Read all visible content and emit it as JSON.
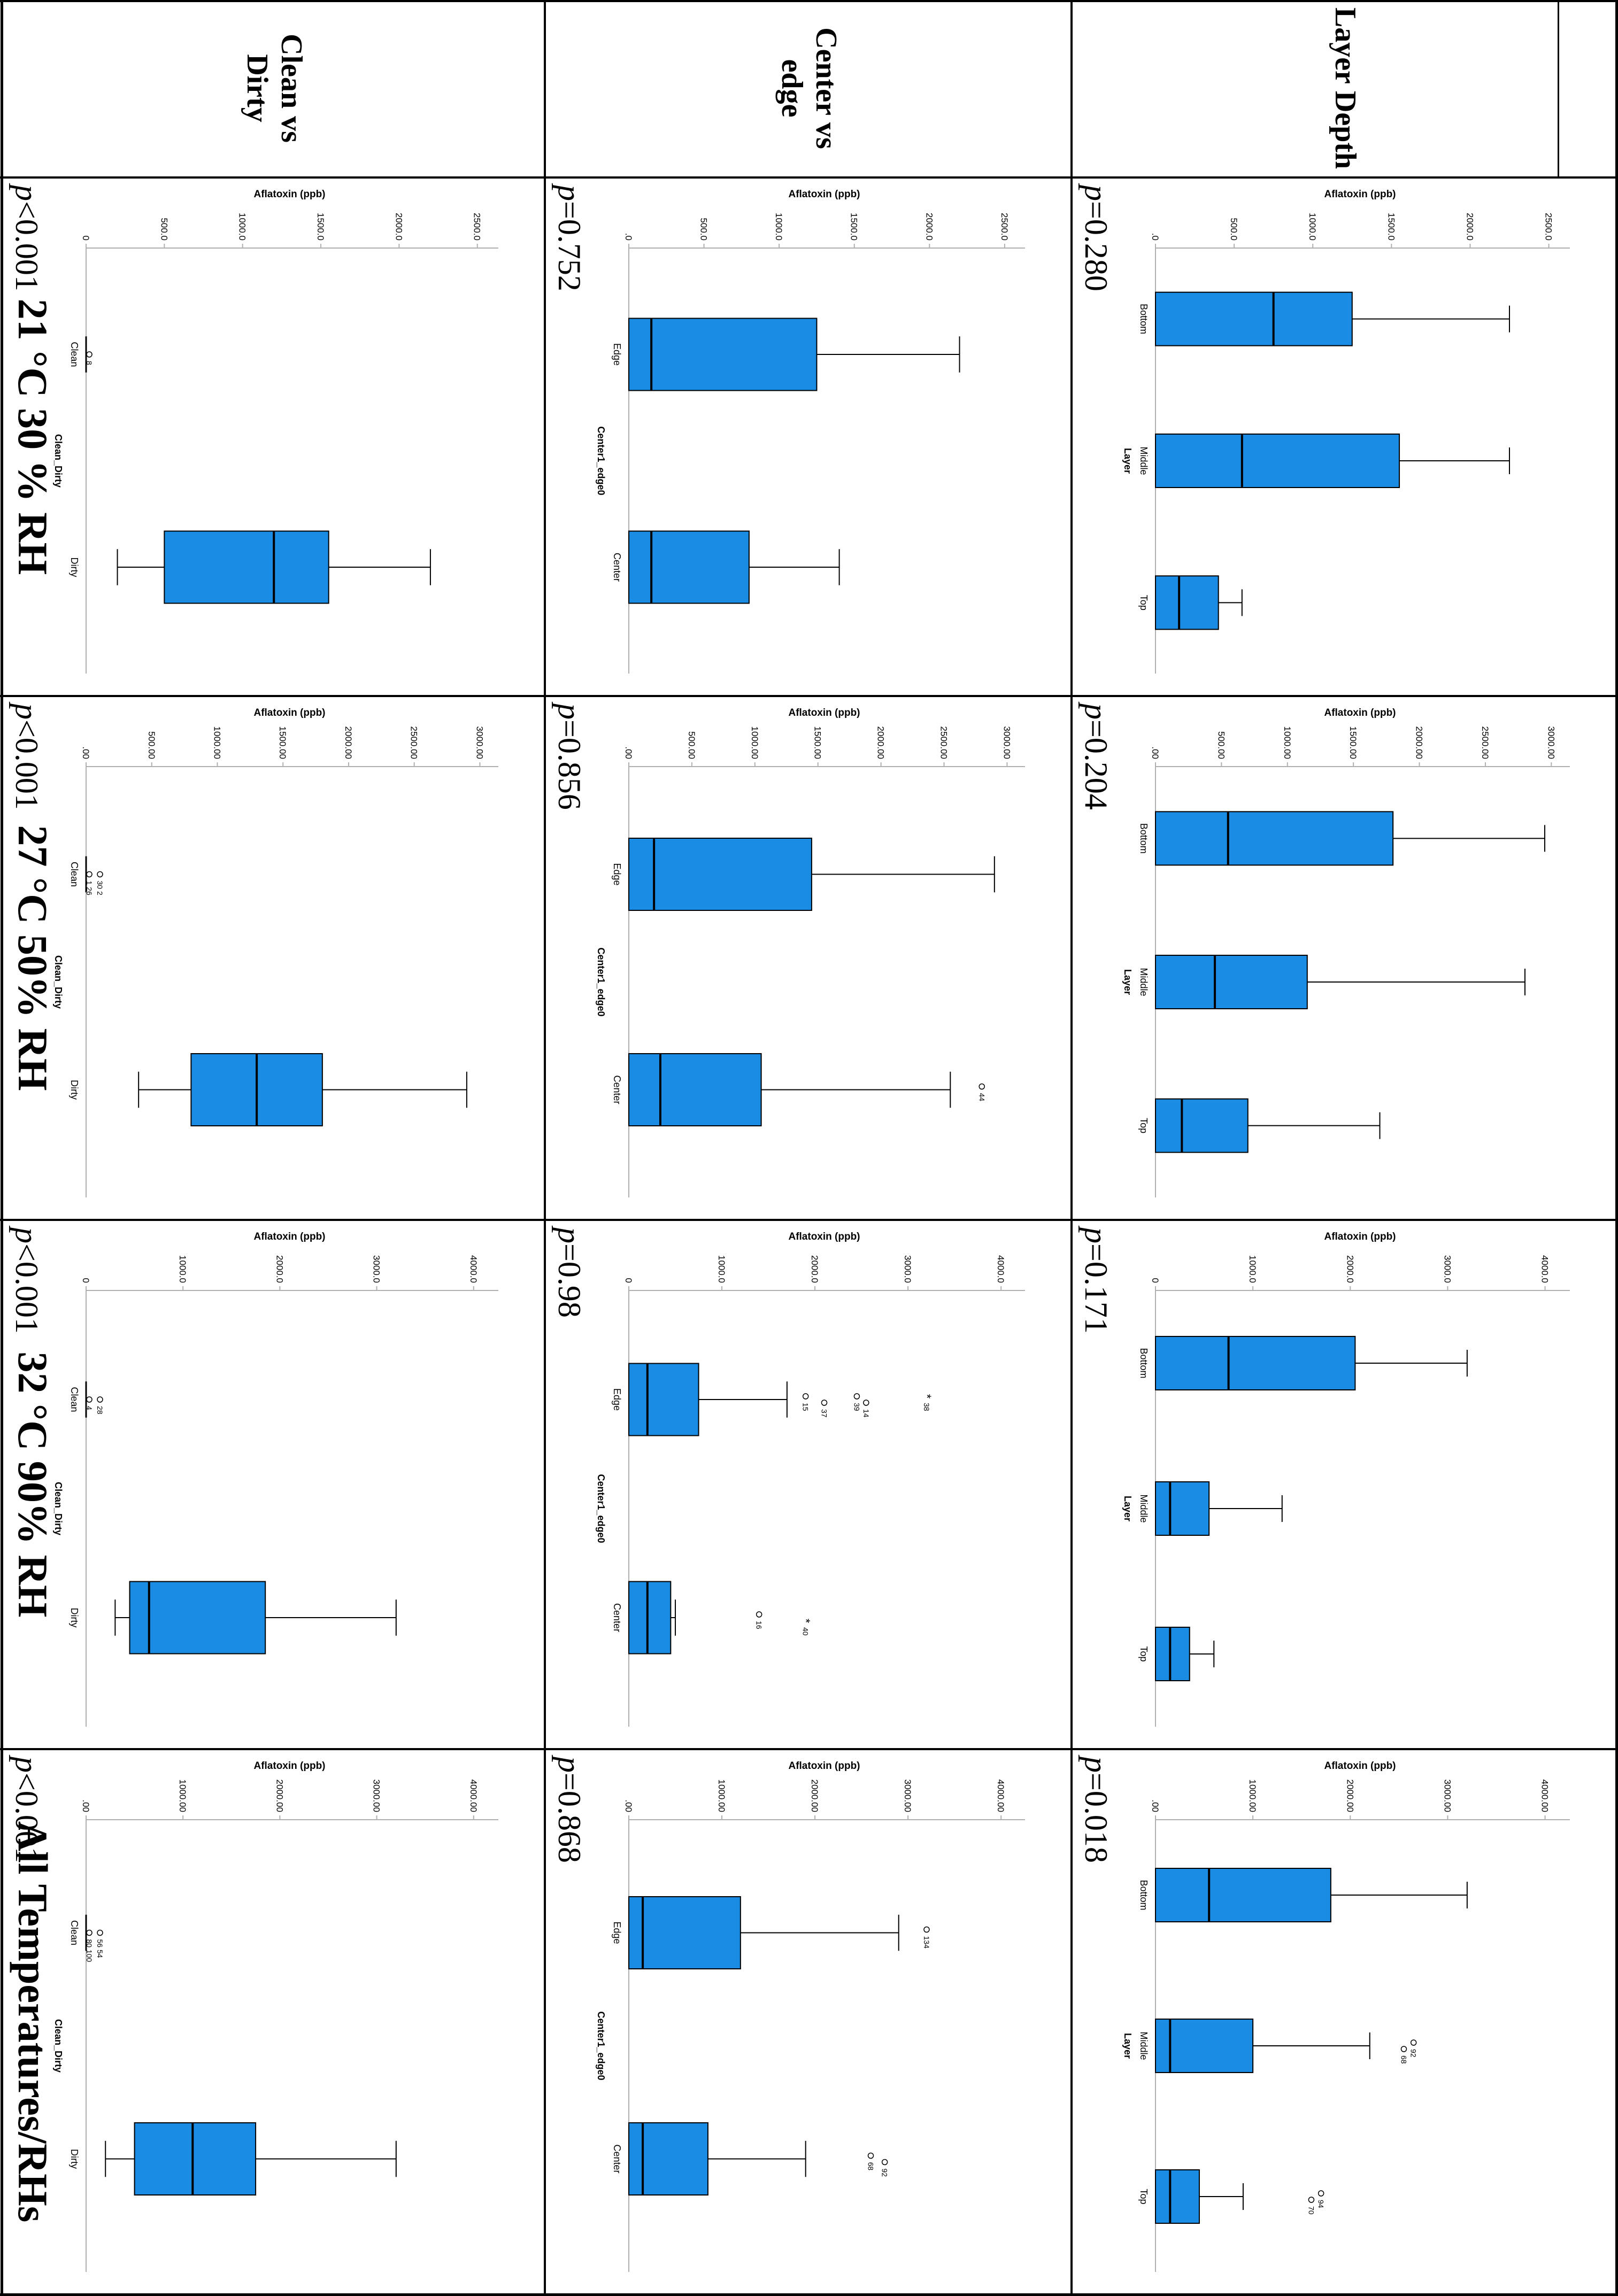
{
  "table": {
    "columns": [
      "21 °C 30 % RH",
      "27 °C 50% RH",
      "32 °C 90% RH",
      "All Temperatures/RHs"
    ],
    "rows": [
      "Layer Depth",
      "Center vs edge",
      "Clean vs Dirty"
    ]
  },
  "colors": {
    "box_fill": "#1b8ce3",
    "line": "#000000",
    "axis": "#b0b0b0"
  },
  "chart_data": [
    {
      "type": "box",
      "row": 0,
      "col": 0,
      "ylabel": "Aflatoxin (ppb)",
      "xlabel": "Layer",
      "ylim": [
        0,
        2600
      ],
      "ticks": [
        0,
        500,
        1000,
        1500,
        2000,
        2500
      ],
      "tick_labels": [
        ".0",
        "500.0",
        "1000.0",
        "1500.0",
        "2000.0",
        "2500.0"
      ],
      "categories": [
        "Bottom",
        "Middle",
        "Top"
      ],
      "boxes": [
        {
          "min": 0,
          "q1": 0,
          "median": 750,
          "q3": 1250,
          "max": 2250,
          "outliers": []
        },
        {
          "min": 0,
          "q1": 0,
          "median": 550,
          "q3": 1550,
          "max": 2250,
          "outliers": []
        },
        {
          "min": 0,
          "q1": 0,
          "median": 150,
          "q3": 400,
          "max": 550,
          "outliers": []
        }
      ],
      "p_value": "=0.280"
    },
    {
      "type": "box",
      "row": 0,
      "col": 1,
      "ylabel": "Aflatoxin (ppb)",
      "xlabel": "Layer",
      "ylim": [
        0,
        3100
      ],
      "ticks": [
        0,
        500,
        1000,
        1500,
        2000,
        2500,
        3000
      ],
      "tick_labels": [
        ".00",
        "500.00",
        "1000.00",
        "1500.00",
        "2000.00",
        "2500.00",
        "3000.00"
      ],
      "categories": [
        "Bottom",
        "Middle",
        "Top"
      ],
      "boxes": [
        {
          "min": 0,
          "q1": 0,
          "median": 550,
          "q3": 1800,
          "max": 2950,
          "outliers": []
        },
        {
          "min": 0,
          "q1": 0,
          "median": 450,
          "q3": 1150,
          "max": 2800,
          "outliers": []
        },
        {
          "min": 0,
          "q1": 0,
          "median": 200,
          "q3": 700,
          "max": 1700,
          "outliers": []
        }
      ],
      "p_value": "=0.204"
    },
    {
      "type": "box",
      "row": 0,
      "col": 2,
      "ylabel": "Aflatoxin (ppb)",
      "xlabel": "Layer",
      "ylim": [
        0,
        4200
      ],
      "ticks": [
        0,
        1000,
        2000,
        3000,
        4000
      ],
      "tick_labels": [
        "0",
        "1000.0",
        "2000.0",
        "3000.0",
        "4000.0"
      ],
      "categories": [
        "Bottom",
        "Middle",
        "Top"
      ],
      "boxes": [
        {
          "min": 0,
          "q1": 0,
          "median": 750,
          "q3": 2050,
          "max": 3200,
          "outliers": []
        },
        {
          "min": 0,
          "q1": 0,
          "median": 150,
          "q3": 550,
          "max": 1300,
          "outliers": []
        },
        {
          "min": 0,
          "q1": 0,
          "median": 150,
          "q3": 350,
          "max": 600,
          "outliers": []
        }
      ],
      "p_value": "=0.171"
    },
    {
      "type": "box",
      "row": 0,
      "col": 3,
      "ylabel": "Aflatoxin (ppb)",
      "xlabel": "Layer",
      "ylim": [
        0,
        4200
      ],
      "ticks": [
        0,
        1000,
        2000,
        3000,
        4000
      ],
      "tick_labels": [
        ".00",
        "1000.00",
        "2000.00",
        "3000.00",
        "4000.00"
      ],
      "categories": [
        "Bottom",
        "Middle",
        "Top"
      ],
      "boxes": [
        {
          "min": 0,
          "q1": 0,
          "median": 550,
          "q3": 1800,
          "max": 3200,
          "outliers": []
        },
        {
          "min": 0,
          "q1": 0,
          "median": 150,
          "q3": 1000,
          "max": 2200,
          "outliers": [
            {
              "value": 2650,
              "label": "92",
              "shape": "o"
            },
            {
              "value": 2550,
              "label": "68",
              "shape": "o"
            }
          ]
        },
        {
          "min": 0,
          "q1": 0,
          "median": 150,
          "q3": 450,
          "max": 900,
          "outliers": [
            {
              "value": 1700,
              "label": "94",
              "shape": "o"
            },
            {
              "value": 1600,
              "label": "70",
              "shape": "o"
            }
          ]
        }
      ],
      "p_value": "=0.018"
    },
    {
      "type": "box",
      "row": 1,
      "col": 0,
      "ylabel": "Aflatoxin (ppb)",
      "xlabel": "Center1_edge0",
      "ylim": [
        0,
        2600
      ],
      "ticks": [
        0,
        500,
        1000,
        1500,
        2000,
        2500
      ],
      "tick_labels": [
        ".0",
        "500.0",
        "1000.0",
        "1500.0",
        "2000.0",
        "2500.0"
      ],
      "categories": [
        "Edge",
        "Center"
      ],
      "boxes": [
        {
          "min": 0,
          "q1": 0,
          "median": 150,
          "q3": 1250,
          "max": 2200,
          "outliers": []
        },
        {
          "min": 0,
          "q1": 0,
          "median": 150,
          "q3": 800,
          "max": 1400,
          "outliers": []
        }
      ],
      "p_value": "=0.752"
    },
    {
      "type": "box",
      "row": 1,
      "col": 1,
      "ylabel": "Aflatoxin (ppb)",
      "xlabel": "Center1_edge0",
      "ylim": [
        0,
        3100
      ],
      "ticks": [
        0,
        500,
        1000,
        1500,
        2000,
        2500,
        3000
      ],
      "tick_labels": [
        ".00",
        "500.00",
        "1000.00",
        "1500.00",
        "2000.00",
        "2500.00",
        "3000.00"
      ],
      "categories": [
        "Edge",
        "Center"
      ],
      "boxes": [
        {
          "min": 0,
          "q1": 0,
          "median": 200,
          "q3": 1450,
          "max": 2900,
          "outliers": []
        },
        {
          "min": 0,
          "q1": 0,
          "median": 250,
          "q3": 1050,
          "max": 2550,
          "outliers": [
            {
              "value": 2800,
              "label": "44",
              "shape": "o"
            }
          ]
        }
      ],
      "p_value": "=0.856"
    },
    {
      "type": "box",
      "row": 1,
      "col": 2,
      "ylabel": "Aflatoxin (ppb)",
      "xlabel": "Center1_edge0",
      "ylim": [
        0,
        4200
      ],
      "ticks": [
        0,
        1000,
        2000,
        3000,
        4000
      ],
      "tick_labels": [
        "0",
        "1000.0",
        "2000.0",
        "3000.0",
        "4000.0"
      ],
      "categories": [
        "Edge",
        "Center"
      ],
      "boxes": [
        {
          "min": 0,
          "q1": 0,
          "median": 200,
          "q3": 750,
          "max": 1700,
          "outliers": [
            {
              "value": 1900,
              "label": "15",
              "shape": "o"
            },
            {
              "value": 2100,
              "label": "37",
              "shape": "o"
            },
            {
              "value": 2450,
              "label": "39",
              "shape": "o"
            },
            {
              "value": 2550,
              "label": "14",
              "shape": "o"
            },
            {
              "value": 3200,
              "label": "38",
              "shape": "*"
            }
          ]
        },
        {
          "min": 0,
          "q1": 0,
          "median": 200,
          "q3": 450,
          "max": 500,
          "outliers": [
            {
              "value": 1400,
              "label": "16",
              "shape": "o"
            },
            {
              "value": 1900,
              "label": "40",
              "shape": "*"
            }
          ]
        }
      ],
      "p_value": "=0.98"
    },
    {
      "type": "box",
      "row": 1,
      "col": 3,
      "ylabel": "Aflatoxin (ppb)",
      "xlabel": "Center1_edge0",
      "ylim": [
        0,
        4200
      ],
      "ticks": [
        0,
        1000,
        2000,
        3000,
        4000
      ],
      "tick_labels": [
        ".00",
        "1000.00",
        "2000.00",
        "3000.00",
        "4000.00"
      ],
      "categories": [
        "Edge",
        "Center"
      ],
      "boxes": [
        {
          "min": 0,
          "q1": 0,
          "median": 150,
          "q3": 1200,
          "max": 2900,
          "outliers": [
            {
              "value": 3200,
              "label": "134",
              "shape": "o"
            }
          ]
        },
        {
          "min": 0,
          "q1": 0,
          "median": 150,
          "q3": 850,
          "max": 1900,
          "outliers": [
            {
              "value": 2600,
              "label": "68",
              "shape": "o"
            },
            {
              "value": 2750,
              "label": "92",
              "shape": "o"
            }
          ]
        }
      ],
      "p_value": "=0.868"
    },
    {
      "type": "box",
      "row": 2,
      "col": 0,
      "ylabel": "Aflatoxin (ppb)",
      "xlabel": "Clean_Dirty",
      "ylim": [
        0,
        2600
      ],
      "ticks": [
        0,
        500,
        1000,
        1500,
        2000,
        2500
      ],
      "tick_labels": [
        "0",
        "500.0",
        "1000.0",
        "1500.0",
        "2000.0",
        "2500.0"
      ],
      "categories": [
        "Clean",
        "Dirty"
      ],
      "boxes": [
        {
          "min": 0,
          "q1": 0,
          "median": 0,
          "q3": 0,
          "max": 0,
          "outliers": [
            {
              "value": 0,
              "label": "8",
              "shape": "o"
            }
          ]
        },
        {
          "min": 200,
          "q1": 500,
          "median": 1200,
          "q3": 1550,
          "max": 2200,
          "outliers": []
        }
      ],
      "p_value": "<0.001"
    },
    {
      "type": "box",
      "row": 2,
      "col": 1,
      "ylabel": "Aflatoxin (ppb)",
      "xlabel": "Clean_Dirty",
      "ylim": [
        0,
        3100
      ],
      "ticks": [
        0,
        500,
        1000,
        1500,
        2000,
        2500,
        3000
      ],
      "tick_labels": [
        ".00",
        "500.00",
        "1000.00",
        "1500.00",
        "2000.00",
        "2500.00",
        "3000.00"
      ],
      "categories": [
        "Clean",
        "Dirty"
      ],
      "boxes": [
        {
          "min": 0,
          "q1": 0,
          "median": 0,
          "q3": 0,
          "max": 0,
          "outliers": [
            {
              "value": 0,
              "label": "1 26",
              "shape": "o"
            },
            {
              "value": 0,
              "label": "30 2",
              "shape": "o"
            }
          ]
        },
        {
          "min": 400,
          "q1": 800,
          "median": 1300,
          "q3": 1800,
          "max": 2900,
          "outliers": []
        }
      ],
      "p_value": "<0.001"
    },
    {
      "type": "box",
      "row": 2,
      "col": 2,
      "ylabel": "Aflatoxin (ppb)",
      "xlabel": "Clean_Dirty",
      "ylim": [
        0,
        4200
      ],
      "ticks": [
        0,
        1000,
        2000,
        3000,
        4000
      ],
      "tick_labels": [
        "0",
        "1000.0",
        "2000.0",
        "3000.0",
        "4000.0"
      ],
      "categories": [
        "Clean",
        "Dirty"
      ],
      "boxes": [
        {
          "min": 0,
          "q1": 0,
          "median": 0,
          "q3": 0,
          "max": 0,
          "outliers": [
            {
              "value": 0,
              "label": "4",
              "shape": "o"
            },
            {
              "value": 0,
              "label": "28",
              "shape": "o"
            }
          ]
        },
        {
          "min": 300,
          "q1": 450,
          "median": 650,
          "q3": 1850,
          "max": 3200,
          "outliers": []
        }
      ],
      "p_value": "<0.001"
    },
    {
      "type": "box",
      "row": 2,
      "col": 3,
      "ylabel": "Aflatoxin (ppb)",
      "xlabel": "Clean_Dirty",
      "ylim": [
        0,
        4200
      ],
      "ticks": [
        0,
        1000,
        2000,
        3000,
        4000
      ],
      "tick_labels": [
        ".00",
        "1000.00",
        "2000.00",
        "3000.00",
        "4000.00"
      ],
      "categories": [
        "Clean",
        "Dirty"
      ],
      "boxes": [
        {
          "min": 0,
          "q1": 0,
          "median": 0,
          "q3": 0,
          "max": 0,
          "outliers": [
            {
              "value": 0,
              "label": "80 100",
              "shape": "o"
            },
            {
              "value": 0,
              "label": "56 54",
              "shape": "o"
            }
          ]
        },
        {
          "min": 200,
          "q1": 500,
          "median": 1100,
          "q3": 1750,
          "max": 3200,
          "outliers": []
        }
      ],
      "p_value": "<0.001"
    }
  ]
}
